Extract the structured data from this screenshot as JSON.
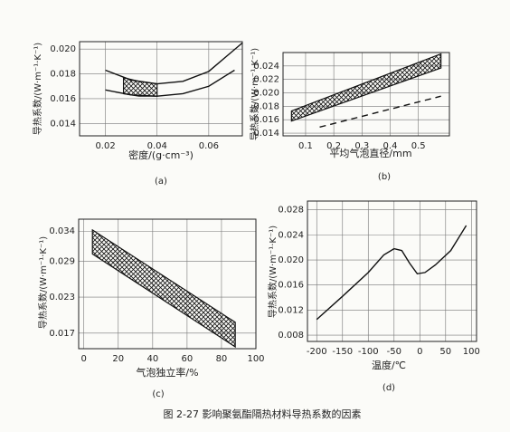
{
  "caption": "图 2-27  影响聚氨酯隔热材料导热系数的因素",
  "chart_data": [
    {
      "type": "line",
      "panel": "(a)",
      "xlabel": "密度/(g·cm⁻³)",
      "ylabel": "导热系数/(W·m⁻¹·K⁻¹)",
      "xlim": [
        0.01,
        0.073
      ],
      "xticks": [
        0.02,
        0.04,
        0.06
      ],
      "ylim": [
        0.013,
        0.0206
      ],
      "yticks": [
        0.014,
        0.016,
        0.018,
        {
          "value": 0.02,
          "label": "0.020"
        }
      ],
      "grid": true,
      "series": [
        {
          "color": "#111111",
          "x": [
            0.02,
            0.03,
            0.04,
            0.05,
            0.06,
            0.073
          ],
          "values": [
            0.0183,
            0.0175,
            0.0172,
            0.0174,
            0.0182,
            0.0205
          ]
        },
        {
          "color": "#111111",
          "x": [
            0.02,
            0.03,
            0.04,
            0.05,
            0.06,
            0.07
          ],
          "values": [
            0.0167,
            0.0163,
            0.0162,
            0.0164,
            0.017,
            0.0183
          ]
        },
        {
          "color": "#111111",
          "x": [
            0.027,
            0.033,
            0.04
          ],
          "low": [
            0.0164,
            0.0162,
            0.0162
          ],
          "high": [
            0.0177,
            0.0174,
            0.0172
          ]
        }
      ]
    },
    {
      "type": "line",
      "panel": "(b)",
      "xlabel": "平均气泡直径/mm",
      "ylabel": "导热系数/(W·m⁻¹·K⁻¹)",
      "xlim": [
        0.02,
        0.61
      ],
      "xticks": [
        0.1,
        0.2,
        0.3,
        0.4,
        0.5
      ],
      "ylim": [
        0.0136,
        0.026
      ],
      "yticks": [
        0.014,
        0.016,
        0.018,
        {
          "value": 0.02,
          "label": "0.020"
        },
        0.022,
        0.024
      ],
      "grid": true,
      "series": [
        {
          "color": "#111111",
          "x": [
            0.05,
            0.58
          ],
          "low": [
            0.0158,
            0.0237
          ],
          "high": [
            0.0173,
            0.0258
          ]
        },
        {
          "color": "#111111",
          "dash": true,
          "x": [
            0.15,
            0.58
          ],
          "values": [
            0.0149,
            0.0195
          ]
        }
      ]
    },
    {
      "type": "line",
      "panel": "(c)",
      "xlabel": "气泡独立率/%",
      "ylabel": "导热系数/(W·m⁻¹·K⁻¹)",
      "xlim": [
        -3,
        100
      ],
      "xticks": [
        0,
        20,
        40,
        60,
        80,
        100
      ],
      "ylim": [
        0.0144,
        0.036
      ],
      "yticks": [
        0.017,
        0.023,
        0.029,
        0.034
      ],
      "grid": true,
      "series": [
        {
          "color": "#111111",
          "x": [
            5,
            88
          ],
          "low": [
            0.0302,
            0.0147
          ],
          "high": [
            0.0342,
            0.0188
          ]
        }
      ]
    },
    {
      "type": "line",
      "panel": "(d)",
      "xlabel": "温度/℃",
      "ylabel": "导热系数/(W·m⁻¹·K⁻¹)",
      "xlim": [
        -218,
        110
      ],
      "xticks": [
        -200,
        -150,
        -100,
        -50,
        0,
        50,
        100
      ],
      "ylim": [
        0.007,
        0.0294
      ],
      "yticks": [
        0.008,
        0.012,
        0.016,
        {
          "value": 0.02,
          "label": "0.020"
        },
        0.024,
        0.028
      ],
      "grid": true,
      "series": [
        {
          "color": "#111111",
          "x": [
            -200,
            -150,
            -100,
            -70,
            -50,
            -35,
            -20,
            -5,
            10,
            30,
            60,
            90
          ],
          "values": [
            0.0105,
            0.0142,
            0.018,
            0.0208,
            0.0218,
            0.0215,
            0.0195,
            0.0178,
            0.018,
            0.0192,
            0.0215,
            0.0255
          ]
        }
      ]
    }
  ]
}
